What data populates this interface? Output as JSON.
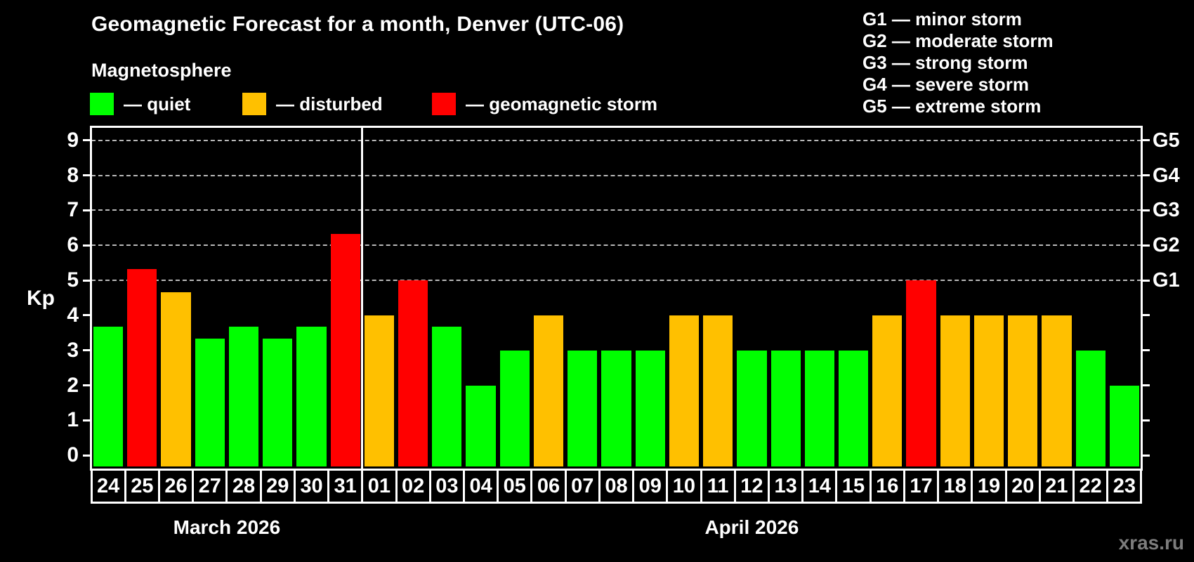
{
  "header": {
    "title": "Geomagnetic Forecast for a month, Denver (UTC-06)",
    "subtitle": "Magnetosphere"
  },
  "legend": {
    "items": [
      {
        "name": "quiet",
        "label": "— quiet",
        "color": "#00ff00"
      },
      {
        "name": "disturbed",
        "label": "— disturbed",
        "color": "#ffc000"
      },
      {
        "name": "storm",
        "label": "— geomagnetic storm",
        "color": "#ff0000"
      }
    ]
  },
  "g_scale_legend": [
    "G1 — minor storm",
    "G2 — moderate storm",
    "G3 — strong storm",
    "G4 — severe storm",
    "G5 — extreme storm"
  ],
  "watermark": "xras.ru",
  "chart_data": {
    "type": "bar",
    "title": "Geomagnetic Forecast for a month, Denver (UTC-06)",
    "ylabel": "Kp",
    "ylim": [
      -0.375,
      9.375
    ],
    "y_ticks": [
      0,
      1,
      2,
      3,
      4,
      5,
      6,
      7,
      8,
      9
    ],
    "gridlines_kp": [
      5,
      6,
      7,
      8,
      9
    ],
    "grid": "dashed-horizontal-at-G-levels",
    "legend_position": "top",
    "right_axis_labels": [
      {
        "label": "G1",
        "kp": 5
      },
      {
        "label": "G2",
        "kp": 6
      },
      {
        "label": "G3",
        "kp": 7
      },
      {
        "label": "G4",
        "kp": 8
      },
      {
        "label": "G5",
        "kp": 9
      }
    ],
    "status_colors": {
      "quiet": "#00ff00",
      "disturbed": "#ffc000",
      "storm": "#ff0000"
    },
    "months": [
      {
        "label": "March 2026",
        "days": 8
      },
      {
        "label": "April 2026",
        "days": 23
      }
    ],
    "days": [
      {
        "date": "24",
        "kp": 3.67,
        "status": "quiet"
      },
      {
        "date": "25",
        "kp": 5.33,
        "status": "storm"
      },
      {
        "date": "26",
        "kp": 4.67,
        "status": "disturbed"
      },
      {
        "date": "27",
        "kp": 3.33,
        "status": "quiet"
      },
      {
        "date": "28",
        "kp": 3.67,
        "status": "quiet"
      },
      {
        "date": "29",
        "kp": 3.33,
        "status": "quiet"
      },
      {
        "date": "30",
        "kp": 3.67,
        "status": "quiet"
      },
      {
        "date": "31",
        "kp": 6.33,
        "status": "storm"
      },
      {
        "date": "01",
        "kp": 4,
        "status": "disturbed"
      },
      {
        "date": "02",
        "kp": 5,
        "status": "storm"
      },
      {
        "date": "03",
        "kp": 3.67,
        "status": "quiet"
      },
      {
        "date": "04",
        "kp": 2,
        "status": "quiet"
      },
      {
        "date": "05",
        "kp": 3,
        "status": "quiet"
      },
      {
        "date": "06",
        "kp": 4,
        "status": "disturbed"
      },
      {
        "date": "07",
        "kp": 3,
        "status": "quiet"
      },
      {
        "date": "08",
        "kp": 3,
        "status": "quiet"
      },
      {
        "date": "09",
        "kp": 3,
        "status": "quiet"
      },
      {
        "date": "10",
        "kp": 4,
        "status": "disturbed"
      },
      {
        "date": "11",
        "kp": 4,
        "status": "disturbed"
      },
      {
        "date": "12",
        "kp": 3,
        "status": "quiet"
      },
      {
        "date": "13",
        "kp": 3,
        "status": "quiet"
      },
      {
        "date": "14",
        "kp": 3,
        "status": "quiet"
      },
      {
        "date": "15",
        "kp": 3,
        "status": "quiet"
      },
      {
        "date": "16",
        "kp": 4,
        "status": "disturbed"
      },
      {
        "date": "17",
        "kp": 5,
        "status": "storm"
      },
      {
        "date": "18",
        "kp": 4,
        "status": "disturbed"
      },
      {
        "date": "19",
        "kp": 4,
        "status": "disturbed"
      },
      {
        "date": "20",
        "kp": 4,
        "status": "disturbed"
      },
      {
        "date": "21",
        "kp": 4,
        "status": "disturbed"
      },
      {
        "date": "22",
        "kp": 3,
        "status": "quiet"
      },
      {
        "date": "23",
        "kp": 2,
        "status": "quiet"
      }
    ]
  }
}
